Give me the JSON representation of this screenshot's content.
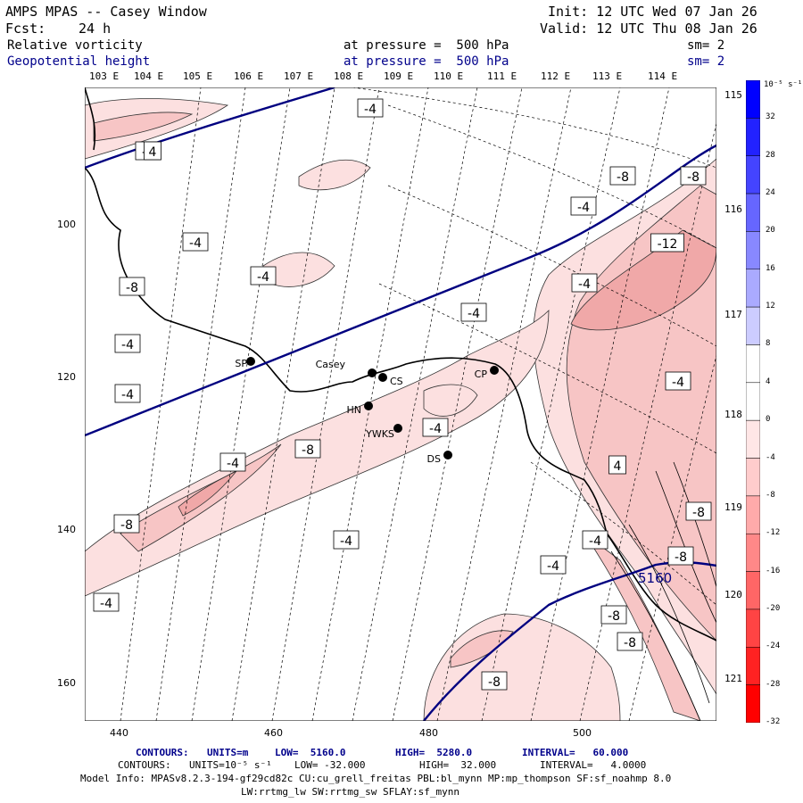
{
  "header": {
    "title": "AMPS MPAS -- Casey Window",
    "fcst_label": "Fcst:",
    "fcst_value": "24 h",
    "init": "Init: 12 UTC Wed 07 Jan 26",
    "valid": "Valid: 12 UTC Thu 08 Jan 26",
    "field1": "Relative vorticity",
    "field1_pressure": "at pressure =  500 hPa",
    "field1_sm": "sm= 2",
    "field2": "Geopotential height",
    "field2_pressure": "at pressure =  500 hPa",
    "field2_sm": "sm= 2"
  },
  "axes": {
    "top_lon_labels": [
      "103 E",
      "104 E",
      "105 E",
      "106 E",
      "107 E",
      "108 E",
      "109 E",
      "110 E",
      "111 E",
      "112 E",
      "113 E",
      "114 E"
    ],
    "right_lon_labels": [
      "115 E",
      "116 E",
      "117 E",
      "118 E",
      "119 E",
      "120 E",
      "121 E"
    ],
    "x_ticks": [
      "440",
      "460",
      "480",
      "500"
    ],
    "y_ticks": [
      "100",
      "120",
      "140",
      "160"
    ]
  },
  "stations": [
    {
      "name": "SP"
    },
    {
      "name": "Casey"
    },
    {
      "name": "CS"
    },
    {
      "name": "HN"
    },
    {
      "name": "YWKS"
    },
    {
      "name": "DS"
    },
    {
      "name": "CP"
    }
  ],
  "contour_labels": {
    "height": "5160",
    "vorticity": [
      "-4",
      "-4",
      "-4",
      "-4",
      "-4",
      "-4",
      "-4",
      "-4",
      "-4",
      "-4",
      "-4",
      "-4",
      "-4",
      "-4",
      "-4",
      "-4",
      "-8",
      "-8",
      "-8",
      "-8",
      "-8",
      "-8",
      "-8",
      "-8",
      "-8",
      "-8",
      "-12",
      "4",
      "4"
    ]
  },
  "colorbar": {
    "unit": "10⁻⁵ s⁻¹",
    "labels": [
      "32",
      "28",
      "24",
      "20",
      "16",
      "12",
      "8",
      "4",
      "0",
      "-4",
      "-8",
      "-12",
      "-16",
      "-20",
      "-24",
      "-28",
      "-32"
    ],
    "colors": [
      "#0000ff",
      "#2222ff",
      "#4444ff",
      "#6666ff",
      "#8888ff",
      "#aaaaff",
      "#ccccff",
      "#ffffff",
      "#ffffff",
      "#ffe6e6",
      "#ffcccc",
      "#ffaaaa",
      "#ff8888",
      "#ff6666",
      "#ff4444",
      "#ff2222",
      "#ff0000"
    ]
  },
  "footer": {
    "line1_label": "CONTOURS:",
    "line1_units": "UNITS=m",
    "line1_low": "LOW=  5160.0",
    "line1_high": "HIGH=  5280.0",
    "line1_interval": "INTERVAL=   60.000",
    "line2_label": "CONTOURS:",
    "line2_units": "UNITS=10⁻⁵ s⁻¹",
    "line2_low": "LOW= -32.000",
    "line2_high": "HIGH=  32.000",
    "line2_interval": "INTERVAL=   4.0000",
    "model_info": "Model Info: MPASv8.2.3-194-gf29cd82c CU:cu_grell_freitas PBL:bl_mynn MP:mp_thompson SF:sf_noahmp 8.0",
    "model_info2": "LW:rrtmg_lw SW:rrtmg_sw SFLAY:sf_mynn"
  }
}
